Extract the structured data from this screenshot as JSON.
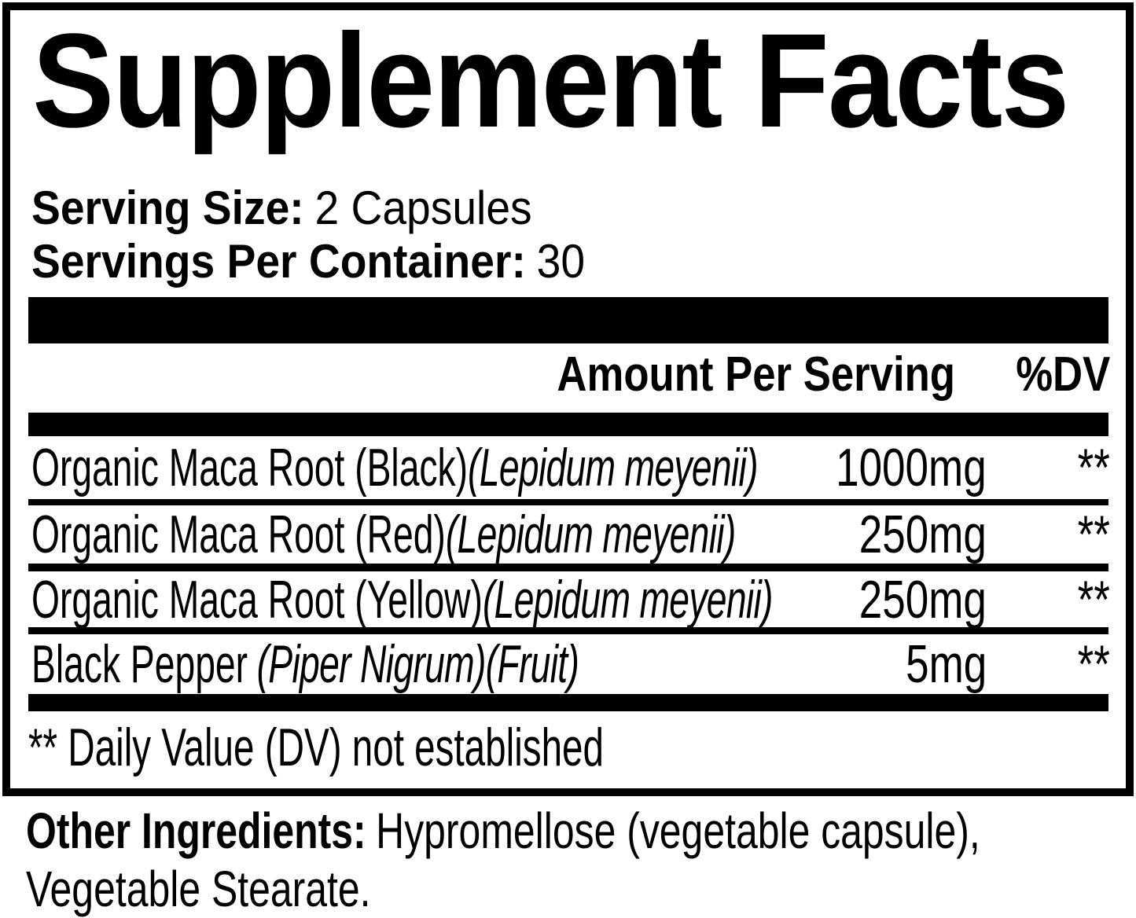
{
  "label": {
    "title": "Supplement Facts",
    "serving": {
      "size_label": "Serving Size:",
      "size_value": "2 Capsules",
      "container_label": "Servings Per Container:",
      "container_value": "30"
    },
    "columns": {
      "amount_header": "Amount Per Serving",
      "dv_header": "%DV"
    },
    "rows": [
      {
        "name": "Organic Maca Root (Black)",
        "latin": "(Lepidum meyenii)",
        "amount": "1000mg",
        "dv": "**"
      },
      {
        "name": "Organic Maca Root (Red)",
        "latin": "(Lepidum meyenii)",
        "amount": "250mg",
        "dv": "**"
      },
      {
        "name": "Organic Maca Root (Yellow)",
        "latin": "(Lepidum meyenii)",
        "amount": "250mg",
        "dv": "**"
      },
      {
        "name": "Black Pepper",
        "latin": "(Piper Nigrum)(Fruit)",
        "amount": "5mg",
        "dv": "**"
      }
    ],
    "footnote": "** Daily Value (DV) not established",
    "other_ingredients": {
      "label": "Other Ingredients:",
      "line1": "Hypromellose (vegetable capsule),",
      "line2": "Vegetable Stearate."
    },
    "colors": {
      "text": "#000000",
      "background": "#ffffff"
    }
  }
}
